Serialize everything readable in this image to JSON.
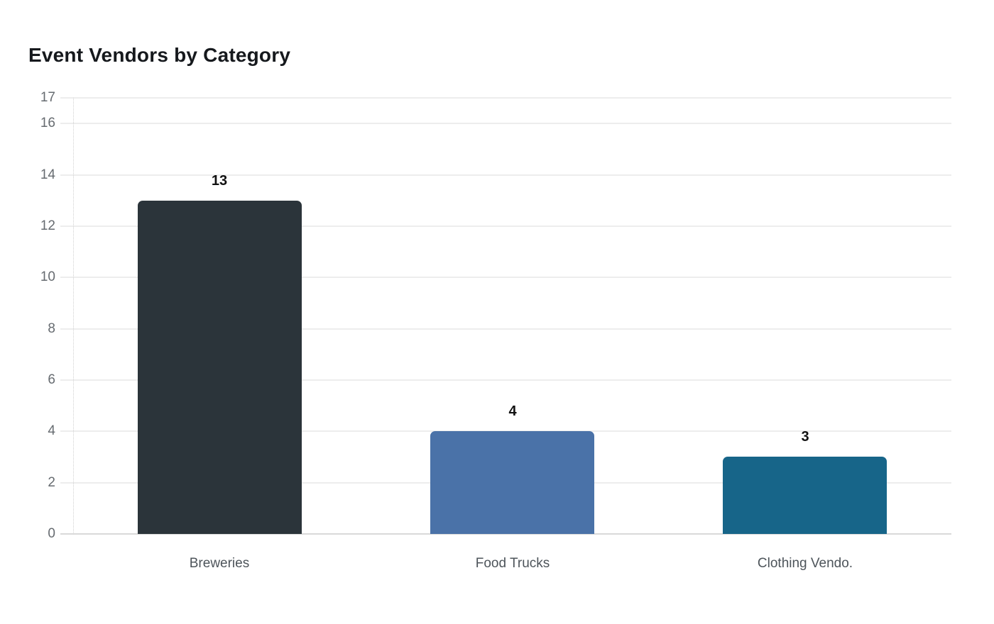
{
  "title": "Event Vendors by Category",
  "chart_data": {
    "type": "bar",
    "title": "Event Vendors by Category",
    "categories": [
      "Breweries",
      "Food Trucks",
      "Clothing Vendo."
    ],
    "values": [
      13,
      4,
      3
    ],
    "data_labels": [
      "13",
      "4",
      "3"
    ],
    "bar_colors": [
      "#2b343a",
      "#4a72a8",
      "#176589"
    ],
    "xlabel": "",
    "ylabel": "",
    "ylim": [
      0,
      17
    ],
    "yticks": [
      0,
      2,
      4,
      6,
      8,
      10,
      12,
      14,
      16,
      17
    ],
    "grid": "horizontal-only",
    "legend_position": "none",
    "background": "#ffffff",
    "axis_colors": {
      "gridline": "#ededed",
      "baseline": "#d9d9d9",
      "y_axis_dotted": "#d0d0d0",
      "tick_label": "#666b70",
      "category_label": "#4d545a",
      "value_label": "#111111",
      "title": "#16191d"
    }
  }
}
